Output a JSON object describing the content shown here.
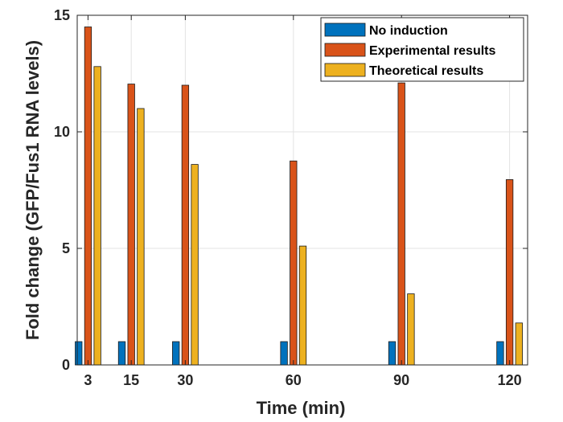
{
  "chart_data": {
    "type": "bar",
    "title": "",
    "xlabel": "Time (min)",
    "ylabel": "Fold change (GFP/Fus1 RNA levels)",
    "x": [
      3,
      15,
      30,
      60,
      90,
      120
    ],
    "xlim": [
      0,
      125
    ],
    "ylim": [
      0,
      15
    ],
    "x_ticks": [
      3,
      15,
      30,
      60,
      90,
      120
    ],
    "y_ticks": [
      0,
      5,
      10,
      15
    ],
    "grid": true,
    "legend_position": "top-right",
    "series": [
      {
        "name": "No induction",
        "color": "#0072BD",
        "values": [
          1,
          1,
          1,
          1,
          1,
          1
        ]
      },
      {
        "name": "Experimental results",
        "color": "#D95319",
        "values": [
          14.5,
          12.05,
          12.0,
          8.75,
          12.1,
          7.95
        ]
      },
      {
        "name": "Theoretical results",
        "color": "#EDB120",
        "values": [
          12.8,
          11.0,
          8.6,
          5.1,
          3.05,
          1.8
        ]
      }
    ]
  }
}
